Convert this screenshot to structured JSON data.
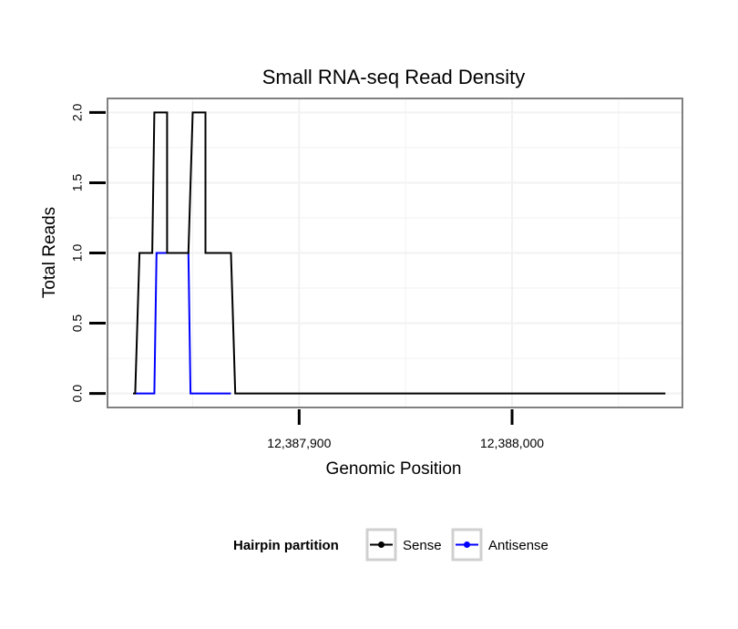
{
  "chart_data": {
    "type": "line",
    "title": "Small RNA-seq Read Density",
    "xlabel": "Genomic Position",
    "ylabel": "Total Reads",
    "xlim": [
      12387810,
      12388080
    ],
    "ylim": [
      -0.1,
      2.1
    ],
    "xticks": [
      {
        "value": 12387900,
        "label": "12,387,900"
      },
      {
        "value": 12388000,
        "label": "12,388,000"
      }
    ],
    "yticks": [
      {
        "value": 0.0,
        "label": "0.0"
      },
      {
        "value": 0.5,
        "label": "0.5"
      },
      {
        "value": 1.0,
        "label": "1.0"
      },
      {
        "value": 1.5,
        "label": "1.5"
      },
      {
        "value": 2.0,
        "label": "2.0"
      }
    ],
    "grid": true,
    "legend": {
      "title": "Hairpin partition",
      "placement": "bottom"
    },
    "series": [
      {
        "name": "Sense",
        "color": "#000000",
        "x": [
          12387822,
          12387823,
          12387823,
          12387825,
          12387831,
          12387831,
          12387832,
          12387838,
          12387838,
          12387840,
          12387848,
          12387848,
          12387850,
          12387856,
          12387856,
          12387858,
          12387868,
          12387868,
          12387870,
          12388072
        ],
        "y": [
          0,
          0,
          0,
          1,
          1,
          1,
          2,
          2,
          1,
          1,
          1,
          1,
          2,
          2,
          1,
          1,
          1,
          1,
          0,
          0
        ]
      },
      {
        "name": "Antisense",
        "color": "#0000ff",
        "x": [
          12387823,
          12387832,
          12387833,
          12387848,
          12387849,
          12387868
        ],
        "y": [
          0,
          0,
          1,
          1,
          0,
          0
        ]
      }
    ]
  }
}
